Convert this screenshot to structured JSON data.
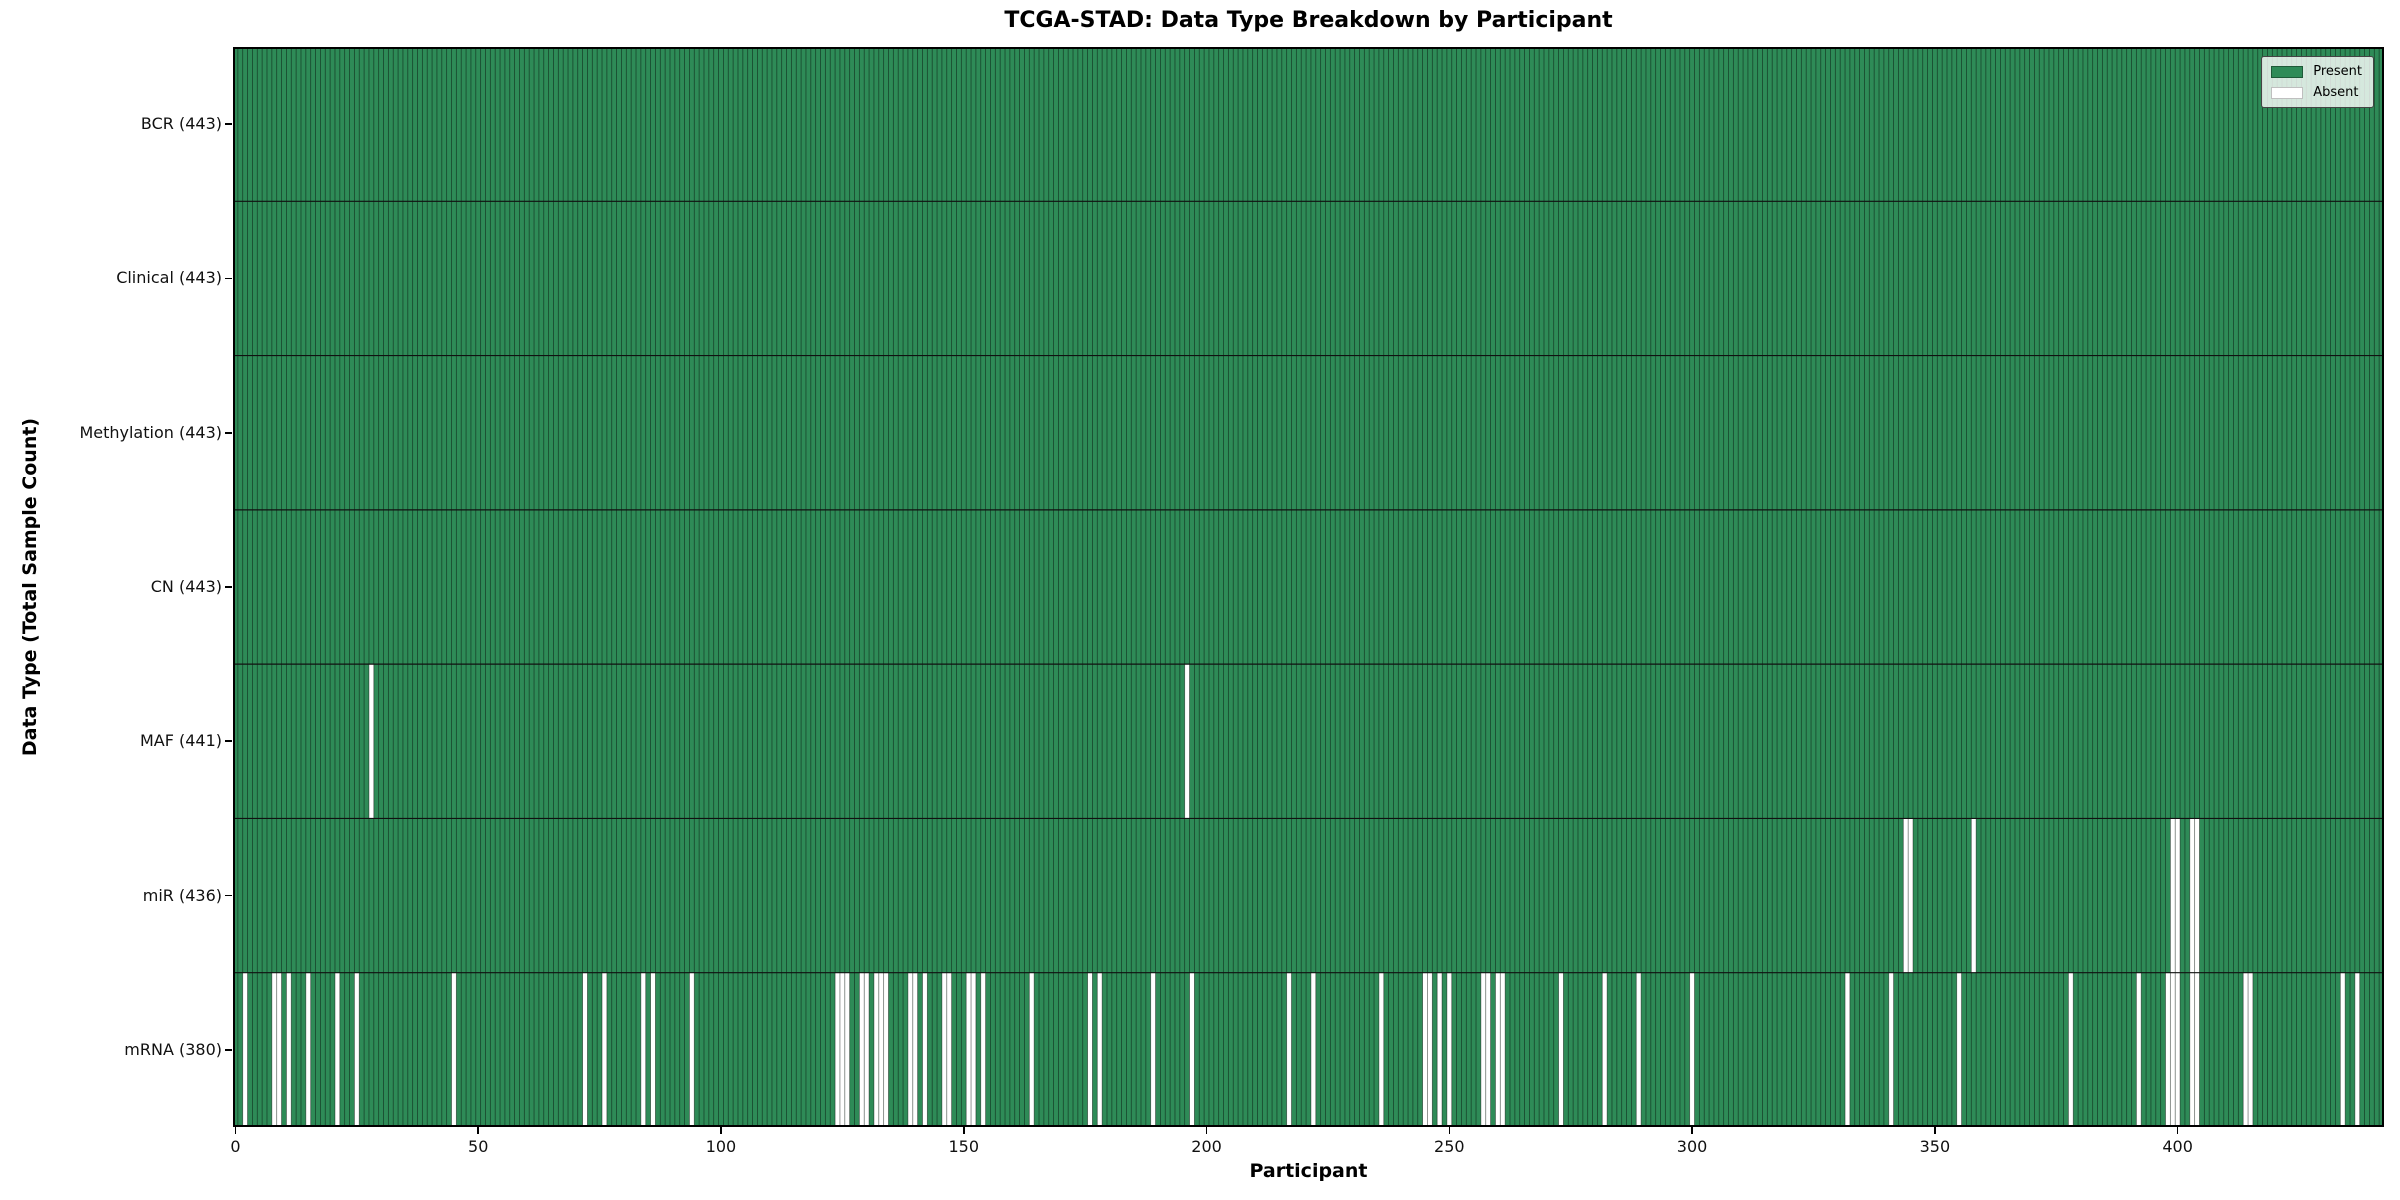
{
  "chart_data": {
    "type": "heatmap",
    "title": "TCGA-STAD: Data Type Breakdown by Participant",
    "xlabel": "Participant",
    "ylabel": "Data Type (Total Sample Count)",
    "n_participants": 443,
    "x_ticks": [
      0,
      50,
      100,
      150,
      200,
      250,
      300,
      350,
      400
    ],
    "legend": [
      {
        "label": "Present",
        "color": "#2e8b57"
      },
      {
        "label": "Absent",
        "color": "#ffffff"
      }
    ],
    "legend_position": "upper right",
    "colors": {
      "present": "#2e8b57",
      "absent": "#ffffff",
      "bar_edge": "rgba(0,0,0,0.5)",
      "row_separator": "#111111",
      "plot_border": "#000000"
    },
    "rows": [
      {
        "label": "BCR (443)",
        "name": "BCR",
        "count": 443,
        "absent": []
      },
      {
        "label": "Clinical (443)",
        "name": "Clinical",
        "count": 443,
        "absent": []
      },
      {
        "label": "Methylation (443)",
        "name": "Methylation",
        "count": 443,
        "absent": []
      },
      {
        "label": "CN (443)",
        "name": "CN",
        "count": 443,
        "absent": []
      },
      {
        "label": "MAF (441)",
        "name": "MAF",
        "count": 441,
        "absent": [
          28,
          196
        ]
      },
      {
        "label": "miR (436)",
        "name": "miR",
        "count": 436,
        "absent": [
          344,
          345,
          358,
          399,
          400,
          403,
          404
        ]
      },
      {
        "label": "mRNA (380)",
        "name": "mRNA",
        "count": 380,
        "absent": [
          2,
          8,
          9,
          11,
          15,
          21,
          25,
          45,
          72,
          76,
          84,
          86,
          94,
          124,
          125,
          126,
          129,
          130,
          132,
          133,
          134,
          139,
          140,
          142,
          146,
          147,
          151,
          152,
          154,
          164,
          176,
          178,
          189,
          197,
          217,
          222,
          236,
          245,
          246,
          248,
          250,
          257,
          258,
          260,
          261,
          273,
          282,
          289,
          300,
          332,
          341,
          355,
          378,
          392,
          398,
          399,
          400,
          403,
          404,
          414,
          415,
          434,
          437
        ]
      }
    ]
  }
}
